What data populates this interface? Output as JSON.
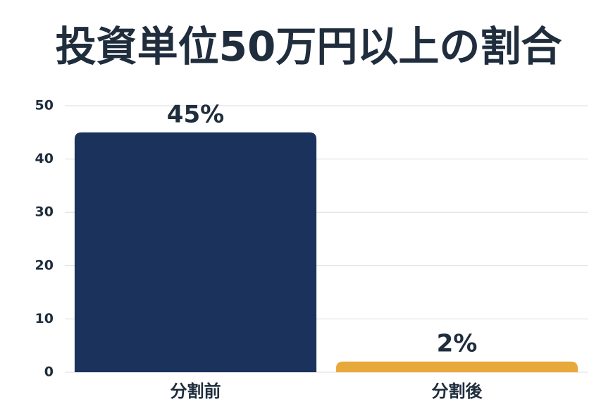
{
  "chart_data": {
    "type": "bar",
    "title": "投資単位50万円以上の割合",
    "categories": [
      "分割前",
      "分割後"
    ],
    "values": [
      45,
      2
    ],
    "value_labels": [
      "45%",
      "2%"
    ],
    "colors": [
      "#1b335c",
      "#e8a93b"
    ],
    "ylim": [
      0,
      50
    ],
    "yticks": [
      0,
      10,
      20,
      30,
      40,
      50
    ],
    "grid": true
  }
}
